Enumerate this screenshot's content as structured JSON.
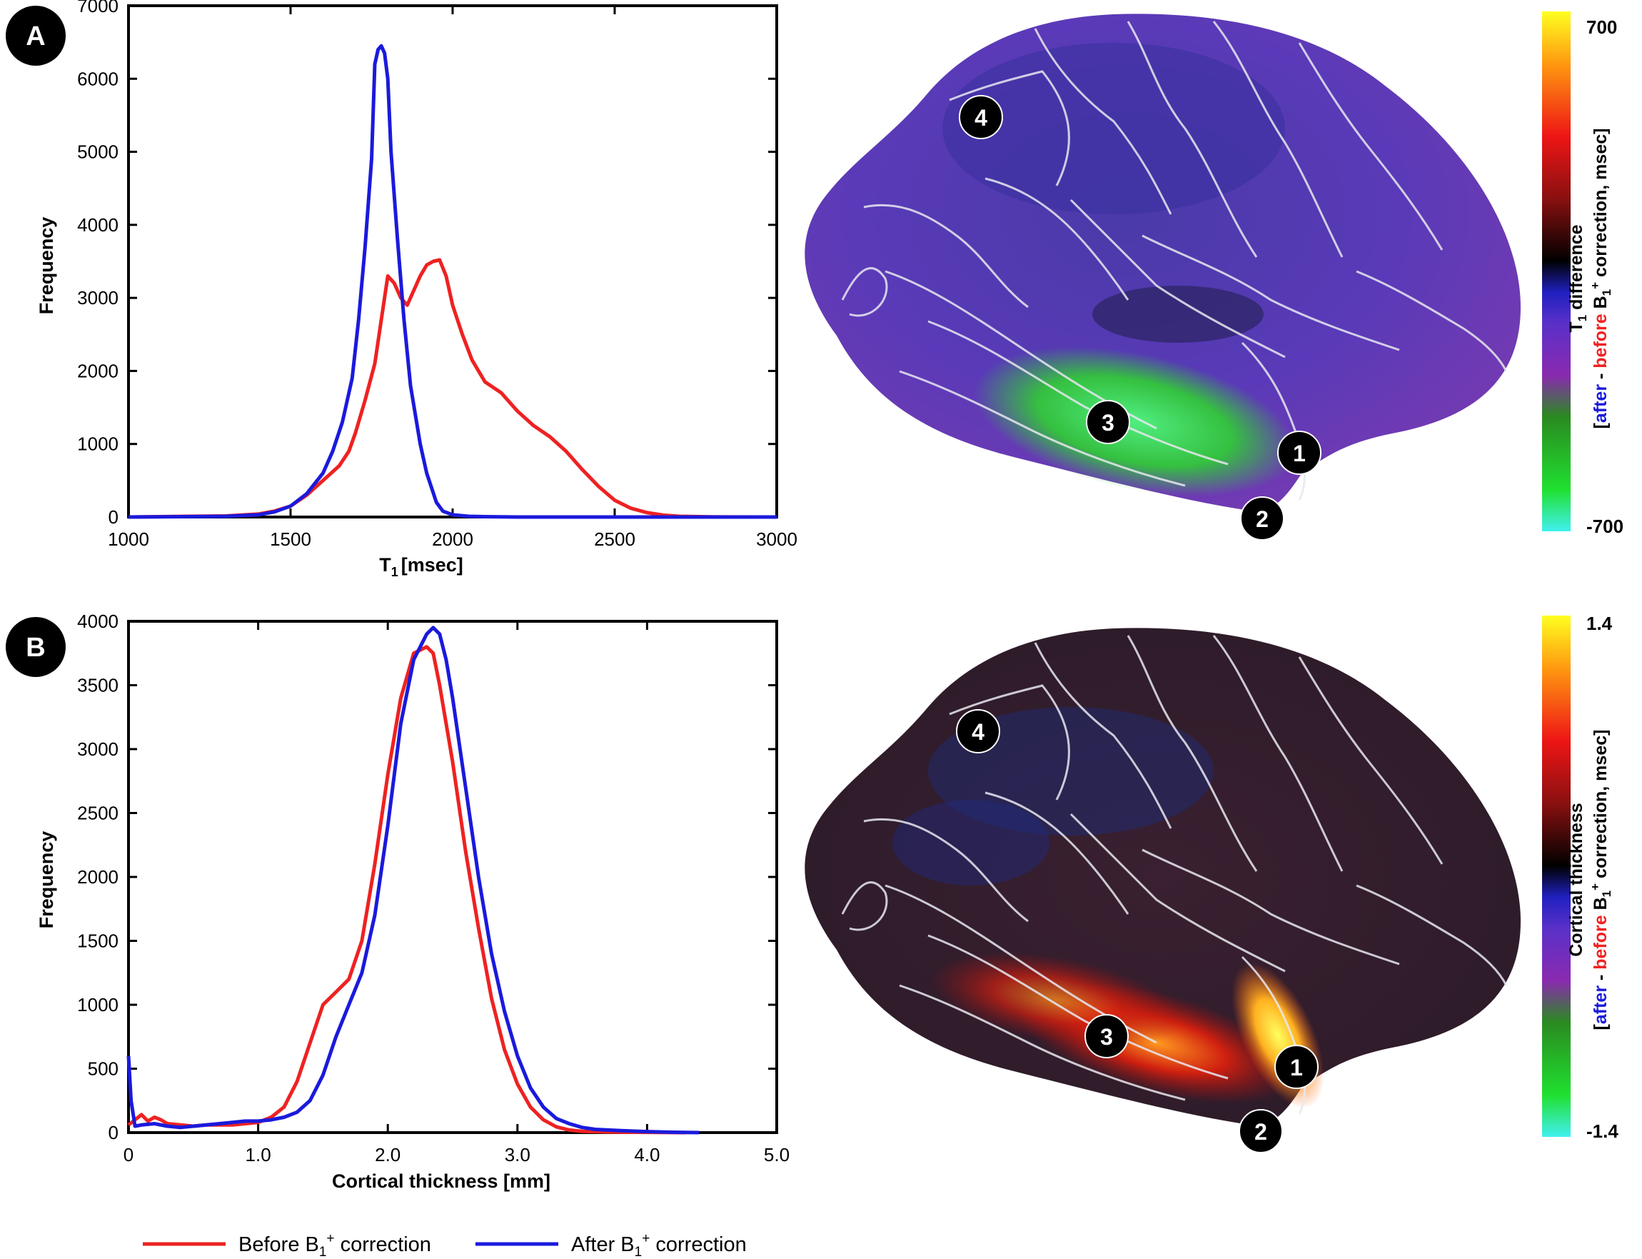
{
  "panels": {
    "a": {
      "label": "A"
    },
    "b": {
      "label": "B"
    }
  },
  "chart_data": [
    {
      "type": "line",
      "panel": "A",
      "title": "",
      "xlabel": "T",
      "xlabel_sub": "1",
      "xlabel_unit": "[msec]",
      "ylabel": "Frequency",
      "xlim": [
        1000,
        3000
      ],
      "ylim": [
        0,
        7000
      ],
      "xticks": [
        1000,
        1500,
        2000,
        2500,
        3000
      ],
      "xtick_labels": [
        "1000",
        "1500",
        "2000",
        "2500",
        "3000"
      ],
      "yticks": [
        0,
        1000,
        2000,
        3000,
        4000,
        5000,
        6000,
        7000
      ],
      "ytick_labels": [
        "0",
        "1000",
        "2000",
        "3000",
        "4000",
        "5000",
        "6000",
        "7000"
      ],
      "series": [
        {
          "name": "Before B1+ correction",
          "color": "#ee2222",
          "x": [
            1000,
            1300,
            1400,
            1450,
            1500,
            1550,
            1600,
            1650,
            1680,
            1700,
            1730,
            1760,
            1780,
            1800,
            1820,
            1840,
            1860,
            1880,
            1900,
            1920,
            1940,
            1960,
            1980,
            2000,
            2030,
            2060,
            2100,
            2150,
            2200,
            2250,
            2300,
            2350,
            2400,
            2450,
            2500,
            2550,
            2600,
            2650,
            2700,
            2800,
            3000
          ],
          "values": [
            0,
            15,
            40,
            80,
            150,
            300,
            500,
            700,
            900,
            1150,
            1600,
            2100,
            2700,
            3300,
            3200,
            3000,
            2900,
            3100,
            3300,
            3450,
            3500,
            3520,
            3300,
            2900,
            2500,
            2150,
            1850,
            1700,
            1450,
            1250,
            1100,
            900,
            650,
            420,
            230,
            120,
            60,
            25,
            10,
            2,
            0
          ]
        },
        {
          "name": "After B1+ correction",
          "color": "#1a1adc",
          "x": [
            1000,
            1300,
            1400,
            1450,
            1500,
            1550,
            1600,
            1630,
            1660,
            1690,
            1710,
            1730,
            1750,
            1760,
            1770,
            1780,
            1790,
            1800,
            1810,
            1830,
            1850,
            1870,
            1900,
            1920,
            1950,
            1970,
            2000,
            2050,
            2100,
            2200,
            3000
          ],
          "values": [
            0,
            10,
            30,
            70,
            150,
            320,
            600,
            900,
            1300,
            1900,
            2700,
            3700,
            4900,
            6200,
            6400,
            6450,
            6350,
            6000,
            5000,
            3800,
            2700,
            1800,
            1000,
            600,
            200,
            80,
            30,
            10,
            5,
            0,
            0
          ]
        }
      ]
    },
    {
      "type": "line",
      "panel": "B",
      "title": "",
      "xlabel": "Cortical thickness [mm]",
      "ylabel": "Frequency",
      "xlim": [
        0,
        5
      ],
      "ylim": [
        0,
        4000
      ],
      "xticks": [
        0,
        1,
        2,
        3,
        4,
        5
      ],
      "xtick_labels": [
        "0",
        "1.0",
        "2.0",
        "3.0",
        "4.0",
        "5.0"
      ],
      "yticks": [
        0,
        500,
        1000,
        1500,
        2000,
        2500,
        3000,
        3500,
        4000
      ],
      "ytick_labels": [
        "0",
        "500",
        "1000",
        "1500",
        "2000",
        "2500",
        "3000",
        "3500",
        "4000"
      ],
      "series": [
        {
          "name": "Before B1+ correction",
          "color": "#ee2222",
          "x": [
            0,
            0.05,
            0.1,
            0.15,
            0.2,
            0.25,
            0.3,
            0.4,
            0.5,
            0.6,
            0.7,
            0.8,
            0.9,
            1.0,
            1.1,
            1.2,
            1.3,
            1.4,
            1.5,
            1.6,
            1.7,
            1.8,
            1.9,
            2.0,
            2.1,
            2.2,
            2.3,
            2.35,
            2.4,
            2.5,
            2.6,
            2.7,
            2.8,
            2.9,
            3.0,
            3.1,
            3.2,
            3.3,
            3.4,
            3.5,
            3.7,
            4.0,
            4.3
          ],
          "values": [
            60,
            100,
            140,
            90,
            120,
            100,
            70,
            60,
            50,
            60,
            60,
            60,
            70,
            80,
            120,
            200,
            400,
            700,
            1000,
            1100,
            1200,
            1500,
            2100,
            2800,
            3400,
            3750,
            3800,
            3750,
            3500,
            2900,
            2200,
            1600,
            1050,
            650,
            380,
            200,
            100,
            45,
            20,
            10,
            5,
            2,
            0
          ]
        },
        {
          "name": "After B1+ correction",
          "color": "#1a1adc",
          "x": [
            0,
            0.02,
            0.05,
            0.1,
            0.2,
            0.3,
            0.4,
            0.5,
            0.6,
            0.7,
            0.8,
            0.9,
            1.0,
            1.1,
            1.2,
            1.3,
            1.4,
            1.5,
            1.6,
            1.7,
            1.8,
            1.9,
            2.0,
            2.1,
            2.2,
            2.3,
            2.35,
            2.4,
            2.45,
            2.5,
            2.6,
            2.7,
            2.8,
            2.9,
            3.0,
            3.1,
            3.2,
            3.3,
            3.4,
            3.5,
            3.6,
            3.8,
            4.0,
            4.2,
            4.4
          ],
          "values": [
            600,
            250,
            50,
            60,
            70,
            50,
            40,
            50,
            60,
            70,
            80,
            90,
            90,
            100,
            120,
            160,
            250,
            450,
            750,
            1000,
            1250,
            1700,
            2400,
            3200,
            3700,
            3900,
            3950,
            3900,
            3700,
            3400,
            2700,
            2000,
            1400,
            950,
            600,
            350,
            200,
            110,
            70,
            40,
            25,
            15,
            8,
            3,
            0
          ]
        }
      ]
    }
  ],
  "surfaces": {
    "a": {
      "colorbar_max": "700",
      "colorbar_min": "-700",
      "colorbar_title": "T",
      "colorbar_title_sub": "1",
      "colorbar_title_rest": " difference",
      "colorbar_after": "after",
      "colorbar_dash1": " - ",
      "colorbar_before": "before",
      "colorbar_b": " B",
      "colorbar_b_sub": "1",
      "colorbar_b_sup": "+",
      "colorbar_rest": " correction, msec",
      "colorbar_open": "[",
      "colorbar_close": "]",
      "markers": [
        "1",
        "2",
        "3",
        "4"
      ]
    },
    "b": {
      "colorbar_max": "1.4",
      "colorbar_min": "-1.4",
      "colorbar_title": "Cortical thickness",
      "colorbar_after": "after",
      "colorbar_dash1": " - ",
      "colorbar_before": "before",
      "colorbar_b": " B",
      "colorbar_b_sub": "1",
      "colorbar_b_sup": "+",
      "colorbar_rest": " correction, msec",
      "colorbar_open": "[",
      "colorbar_close": "]",
      "markers": [
        "1",
        "2",
        "3",
        "4"
      ]
    }
  },
  "legend": {
    "before": {
      "text": "Before B",
      "sub": "1",
      "sup": "+",
      "rest": " correction",
      "color": "#ee2222"
    },
    "after": {
      "text": "After B",
      "sub": "1",
      "sup": "+",
      "rest": " correction",
      "color": "#1a1adc"
    }
  }
}
